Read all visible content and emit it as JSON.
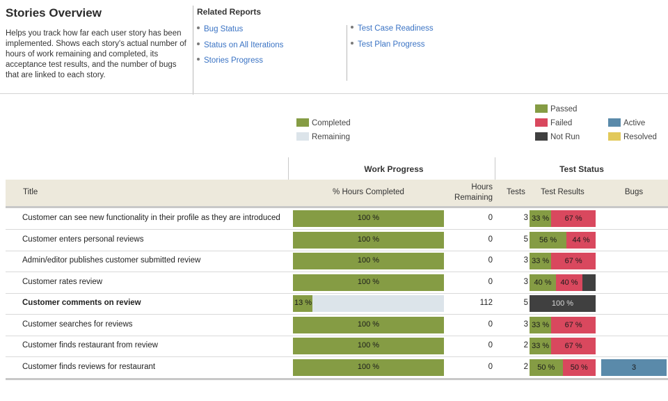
{
  "report": {
    "title": "Stories Overview",
    "description": "Helps you track how far each user story has been implemented. Shows each story's actual number of hours of work remaining and completed, its acceptance test results, and the number of bugs that are linked to each story."
  },
  "related_reports": {
    "title": "Related Reports",
    "links": [
      {
        "label": "Bug Status"
      },
      {
        "label": "Status on All Iterations"
      },
      {
        "label": "Stories Progress"
      },
      {
        "label": "Test Case Readiness"
      },
      {
        "label": "Test Plan Progress"
      }
    ]
  },
  "legend": {
    "completed": {
      "label": "Completed",
      "color": "#859c44"
    },
    "remaining": {
      "label": "Remaining",
      "color": "#dce4ea"
    },
    "passed": {
      "label": "Passed",
      "color": "#859c44"
    },
    "failed": {
      "label": "Failed",
      "color": "#d9485e"
    },
    "not_run": {
      "label": "Not Run",
      "color": "#404040"
    },
    "active": {
      "label": "Active",
      "color": "#5a8aaa"
    },
    "resolved": {
      "label": "Resolved",
      "color": "#e2c95a"
    }
  },
  "table": {
    "groups": {
      "work_progress": "Work Progress",
      "test_status": "Test Status"
    },
    "columns": {
      "title": "Title",
      "pct_hours_completed": "% Hours Completed",
      "hours_remaining": "Hours Remaining",
      "tests": "Tests",
      "test_results": "Test Results",
      "bugs": "Bugs"
    },
    "rows": [
      {
        "title": "Customer can see new functionality in their profile as they are introduced",
        "bold": false,
        "pct_completed": 100,
        "pct_label": "100 %",
        "hours_remaining": "0",
        "tests": "3",
        "results": [
          {
            "type": "passed",
            "pct": 33,
            "label": "33 %"
          },
          {
            "type": "failed",
            "pct": 67,
            "label": "67 %"
          }
        ],
        "bugs": null
      },
      {
        "title": "Customer enters personal reviews",
        "bold": false,
        "pct_completed": 100,
        "pct_label": "100 %",
        "hours_remaining": "0",
        "tests": "5",
        "results": [
          {
            "type": "passed",
            "pct": 56,
            "label": "56 %"
          },
          {
            "type": "failed",
            "pct": 44,
            "label": "44 %"
          }
        ],
        "bugs": null
      },
      {
        "title": "Admin/editor publishes customer submitted review",
        "bold": false,
        "pct_completed": 100,
        "pct_label": "100 %",
        "hours_remaining": "0",
        "tests": "3",
        "results": [
          {
            "type": "passed",
            "pct": 33,
            "label": "33 %"
          },
          {
            "type": "failed",
            "pct": 67,
            "label": "67 %"
          }
        ],
        "bugs": null
      },
      {
        "title": "Customer rates review",
        "bold": false,
        "pct_completed": 100,
        "pct_label": "100 %",
        "hours_remaining": "0",
        "tests": "3",
        "results": [
          {
            "type": "passed",
            "pct": 40,
            "label": "40 %"
          },
          {
            "type": "failed",
            "pct": 40,
            "label": "40 %"
          },
          {
            "type": "notrun",
            "pct": 20,
            "label": ""
          }
        ],
        "bugs": null
      },
      {
        "title": "Customer comments on review",
        "bold": true,
        "pct_completed": 13,
        "pct_label": "13 %",
        "hours_remaining": "112",
        "tests": "5",
        "results": [
          {
            "type": "notrun",
            "pct": 100,
            "label": "100 %"
          }
        ],
        "bugs": null
      },
      {
        "title": "Customer searches for reviews",
        "bold": false,
        "pct_completed": 100,
        "pct_label": "100 %",
        "hours_remaining": "0",
        "tests": "3",
        "results": [
          {
            "type": "passed",
            "pct": 33,
            "label": "33 %"
          },
          {
            "type": "failed",
            "pct": 67,
            "label": "67 %"
          }
        ],
        "bugs": null
      },
      {
        "title": "Customer finds restaurant from review",
        "bold": false,
        "pct_completed": 100,
        "pct_label": "100 %",
        "hours_remaining": "0",
        "tests": "2",
        "results": [
          {
            "type": "passed",
            "pct": 33,
            "label": "33 %"
          },
          {
            "type": "failed",
            "pct": 67,
            "label": "67 %"
          }
        ],
        "bugs": null
      },
      {
        "title": "Customer finds reviews for restaurant",
        "bold": false,
        "pct_completed": 100,
        "pct_label": "100 %",
        "hours_remaining": "0",
        "tests": "2",
        "results": [
          {
            "type": "passed",
            "pct": 50,
            "label": "50 %"
          },
          {
            "type": "failed",
            "pct": 50,
            "label": "50 %"
          }
        ],
        "bugs": {
          "count": "3",
          "type": "active"
        }
      }
    ]
  }
}
